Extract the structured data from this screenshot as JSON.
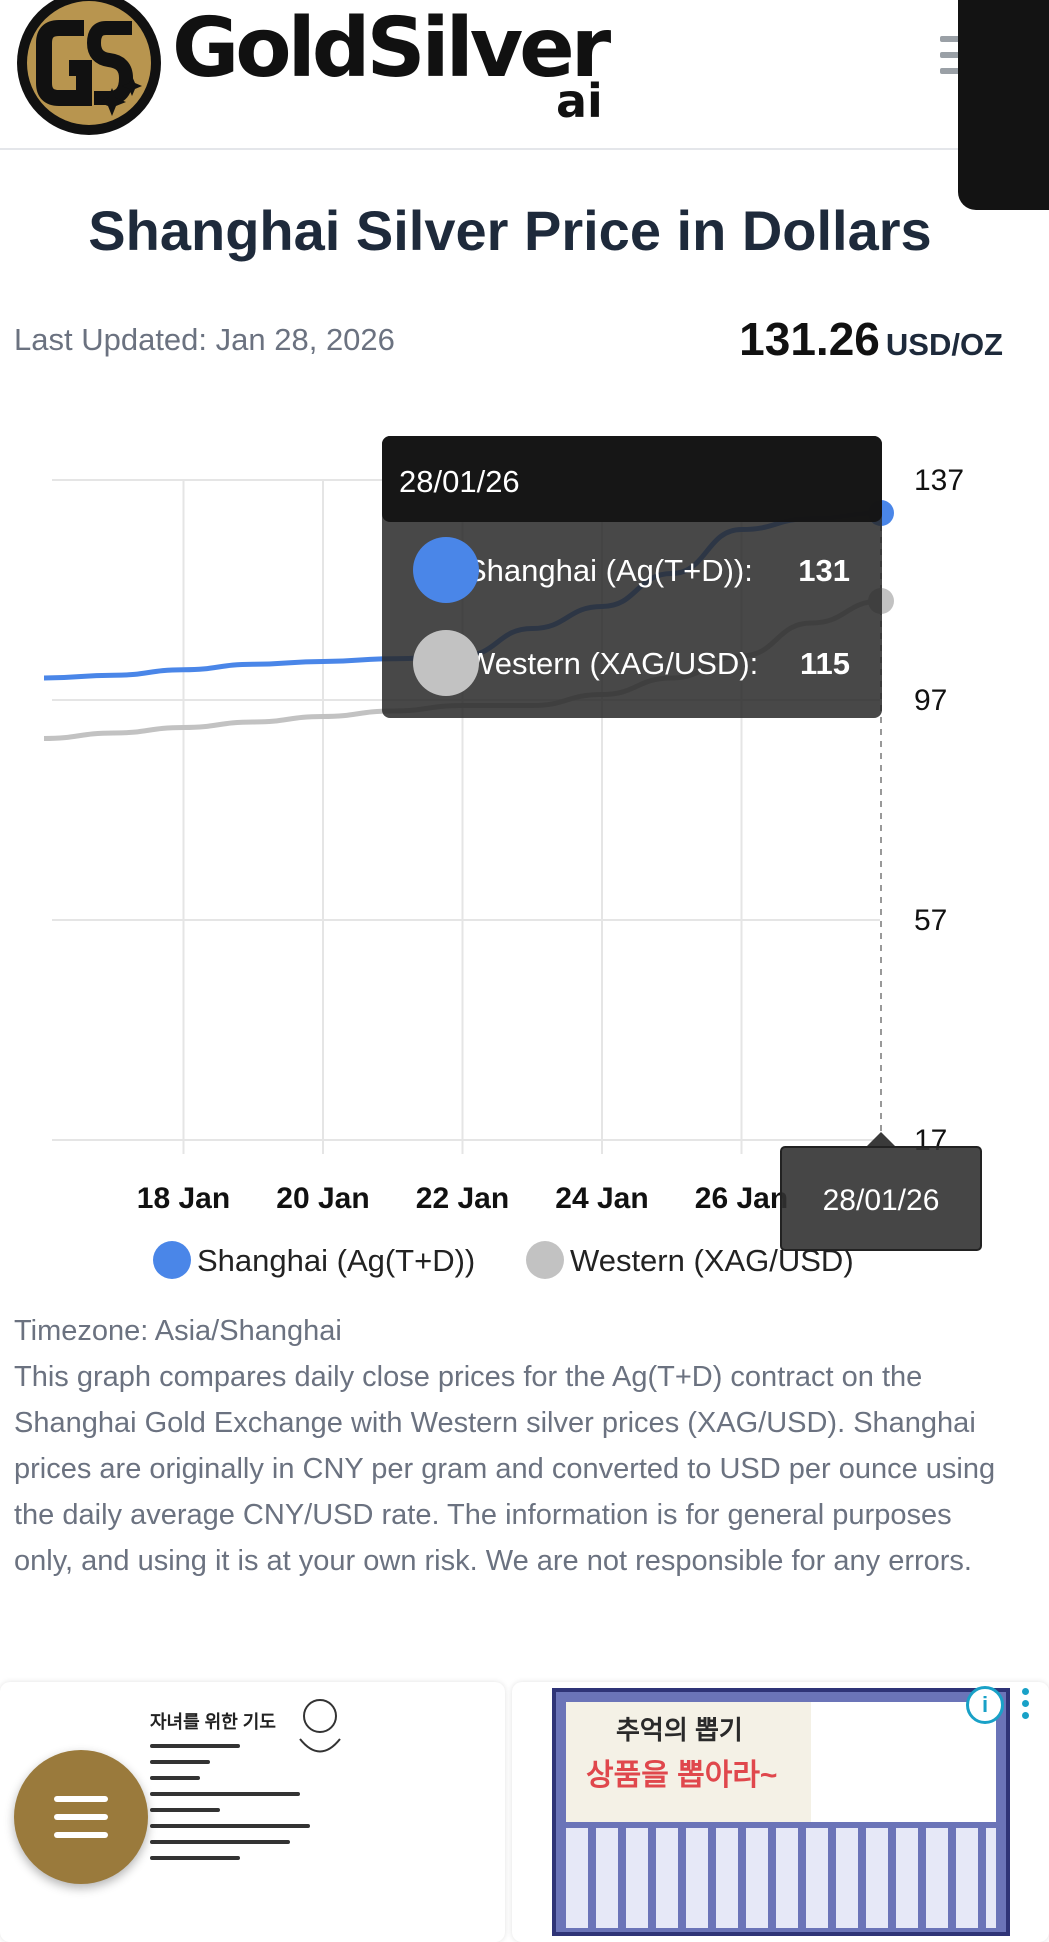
{
  "header": {
    "brand": "GoldSilver",
    "brand_suffix": "ai",
    "logo_letters": "GS"
  },
  "page": {
    "title": "Shanghai Silver Price in Dollars",
    "last_updated": "Last Updated: Jan 28, 2026",
    "price": "131.26",
    "price_unit": "USD/OZ"
  },
  "tooltip": {
    "date": "28/01/26",
    "rows": [
      {
        "label": "Shanghai (Ag(T+D)):",
        "value": "131"
      },
      {
        "label": "Western (XAG/USD):",
        "value": "115"
      }
    ],
    "axis_label": "28/01/26"
  },
  "chart_data": {
    "type": "line",
    "x": [
      "16 Jan",
      "17 Jan",
      "18 Jan",
      "19 Jan",
      "20 Jan",
      "21 Jan",
      "22 Jan",
      "23 Jan",
      "24 Jan",
      "25 Jan",
      "26 Jan",
      "27 Jan",
      "28 Jan"
    ],
    "x_tick_labels": [
      "18 Jan",
      "20 Jan",
      "22 Jan",
      "24 Jan",
      "26 Jan"
    ],
    "series": [
      {
        "name": "Shanghai (Ag(T+D))",
        "color": "#4a86e8",
        "values": [
          101,
          101.5,
          102.5,
          103.5,
          104,
          104.5,
          105,
          110,
          114,
          120,
          128,
          130,
          131
        ]
      },
      {
        "name": "Western (XAG/USD)",
        "color": "#c2c2c2",
        "values": [
          90,
          91,
          92,
          93,
          94,
          95,
          96,
          96,
          98,
          101,
          105,
          111,
          115
        ]
      }
    ],
    "y_ticks": [
      17,
      57,
      97,
      137
    ],
    "ylim": [
      17,
      137
    ],
    "grid": true,
    "legend": "bottom"
  },
  "legend": [
    {
      "label": "Shanghai (Ag(T+D))",
      "color": "#4a86e8"
    },
    {
      "label": "Western (XAG/USD)",
      "color": "#c2c2c2"
    }
  ],
  "description": {
    "timezone": "Timezone: Asia/Shanghai",
    "text": "This graph compares daily close prices for the Ag(T+D) contract on the Shanghai Gold Exchange with Western silver prices (XAG/USD). Shanghai prices are originally in CNY per gram and converted to USD per ounce using the daily average CNY/USD rate. The information is for general purposes only, and using it is at your own risk. We are not responsible for any errors."
  },
  "ads": {
    "left_title": "자녀를 위한 기도",
    "right_title": "추억의 뽑기",
    "right_subtitle": "상품을 뽑아라~",
    "info_glyph": "i"
  }
}
